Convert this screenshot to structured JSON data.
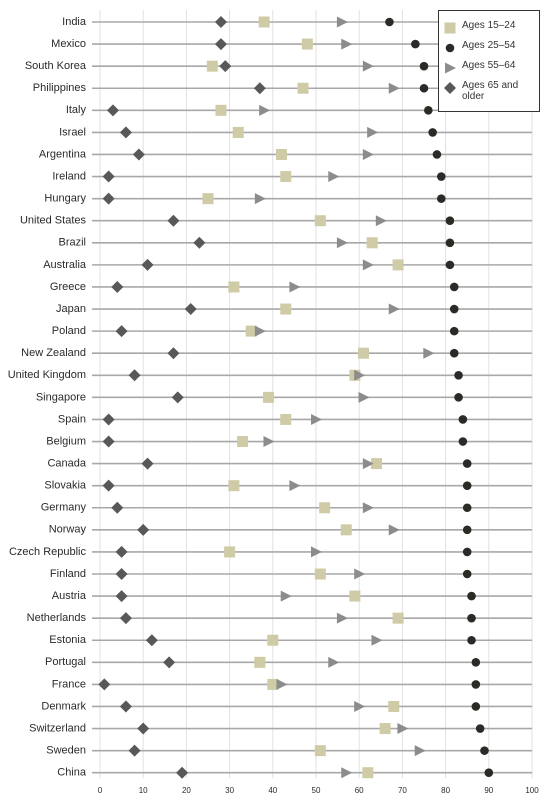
{
  "chart_data": {
    "type": "dot",
    "categories": [
      "India",
      "Mexico",
      "South Korea",
      "Philippines",
      "Italy",
      "Israel",
      "Argentina",
      "Ireland",
      "Hungary",
      "United States",
      "Brazil",
      "Australia",
      "Greece",
      "Japan",
      "Poland",
      "New Zealand",
      "United Kingdom",
      "Singapore",
      "Spain",
      "Belgium",
      "Canada",
      "Slovakia",
      "Germany",
      "Norway",
      "Czech Republic",
      "Finland",
      "Austria",
      "Netherlands",
      "Estonia",
      "Portugal",
      "France",
      "Denmark",
      "Switzerland",
      "Sweden",
      "China"
    ],
    "series": [
      {
        "name": "Ages 15–24",
        "color": "#cfcba6",
        "marker": "square",
        "values": [
          38,
          48,
          26,
          47,
          28,
          32,
          42,
          43,
          25,
          51,
          63,
          69,
          31,
          43,
          35,
          61,
          59,
          39,
          43,
          33,
          64,
          31,
          52,
          57,
          30,
          51,
          59,
          69,
          40,
          37,
          40,
          68,
          66,
          51,
          62
        ]
      },
      {
        "name": "Ages 25–54",
        "color": "#2a2a26",
        "marker": "circle",
        "values": [
          67,
          73,
          75,
          75,
          76,
          77,
          78,
          79,
          79,
          81,
          81,
          81,
          82,
          82,
          82,
          82,
          83,
          83,
          84,
          84,
          85,
          85,
          85,
          85,
          85,
          85,
          86,
          86,
          86,
          87,
          87,
          87,
          88,
          89,
          90
        ]
      },
      {
        "name": "Ages 55–64",
        "color": "#8c8c8c",
        "marker": "triangle",
        "values": [
          56,
          57,
          62,
          68,
          38,
          63,
          62,
          54,
          37,
          65,
          56,
          62,
          45,
          68,
          37,
          76,
          60,
          61,
          50,
          39,
          62,
          45,
          62,
          68,
          50,
          60,
          43,
          56,
          64,
          54,
          42,
          60,
          70,
          74,
          57
        ]
      },
      {
        "name": "Ages 65 and older",
        "color": "#58585a",
        "marker": "diamond",
        "values": [
          28,
          28,
          29,
          37,
          3,
          6,
          9,
          2,
          2,
          17,
          23,
          11,
          4,
          21,
          5,
          17,
          8,
          18,
          2,
          2,
          11,
          2,
          4,
          10,
          5,
          5,
          5,
          6,
          12,
          16,
          1,
          6,
          10,
          8,
          19
        ]
      }
    ],
    "xlim": [
      0,
      100
    ],
    "xticks": [
      0,
      10,
      20,
      30,
      40,
      50,
      60,
      70,
      80,
      90,
      100
    ],
    "grid": true,
    "legend": "top-right"
  }
}
